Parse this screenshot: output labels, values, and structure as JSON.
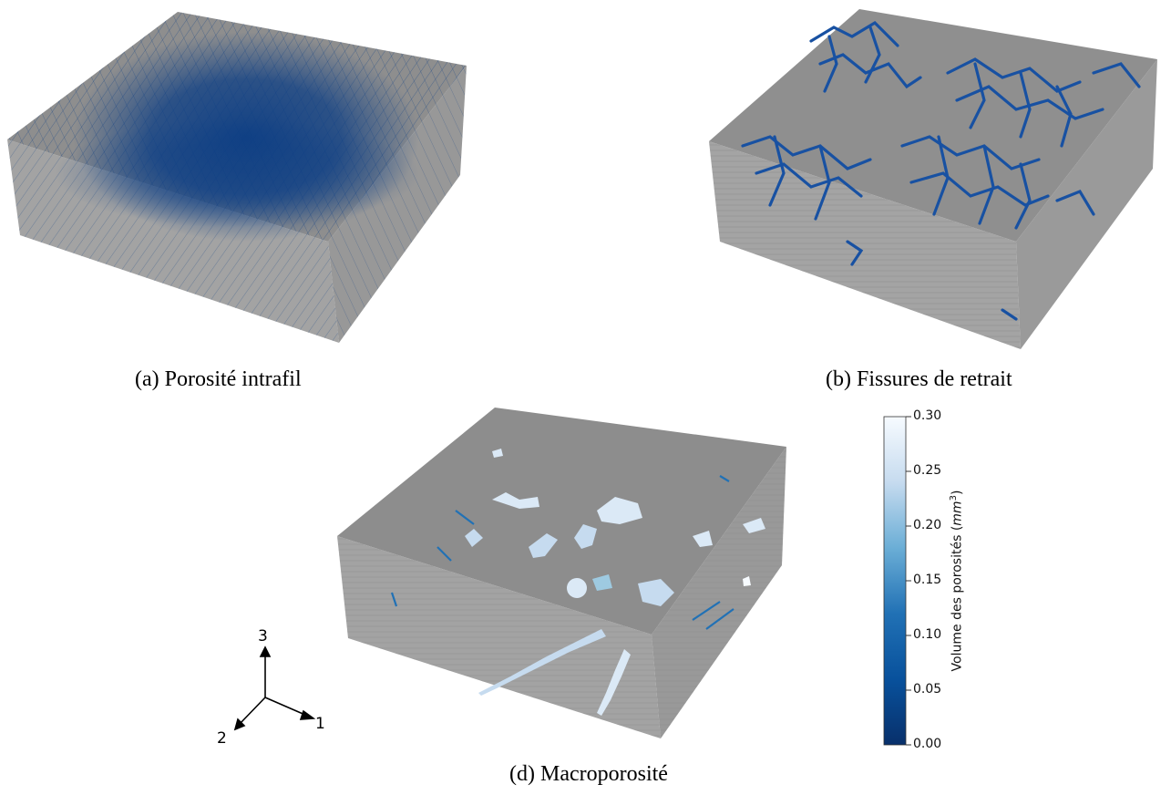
{
  "panels": {
    "a": {
      "caption": "(a) Porosité intrafil"
    },
    "b": {
      "caption": "(b) Fissures de retrait"
    },
    "d": {
      "caption": "(d) Macroporosité"
    }
  },
  "colorbar": {
    "label_main": "Volume des porosités (",
    "label_unit": "mm",
    "label_exp": "3",
    "label_close": ")",
    "ticks": [
      "0.30",
      "0.25",
      "0.20",
      "0.15",
      "0.10",
      "0.05",
      "0.00"
    ],
    "range": [
      0.0,
      0.3
    ],
    "color_low": "#08306b",
    "color_high": "#f7fbff"
  },
  "axes_triad": {
    "axis1": "1",
    "axis2": "2",
    "axis3": "3"
  },
  "colors": {
    "block_top": "#8e8e8e",
    "block_front": "#a4a4a4",
    "block_side": "#9a9a9a",
    "pore_blue": "#0b3d84",
    "crack_blue": "#1851a2"
  }
}
